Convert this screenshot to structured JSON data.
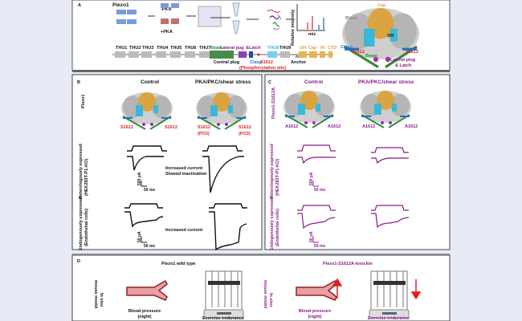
{
  "colors": {
    "background": "#e8eaf6",
    "phospho": "#e02020",
    "mutant": "#8b1a8b",
    "beam": "#2e8b3a",
    "clasp": "#1e6fd0",
    "thu8": "#3ab8d8",
    "cap": "#d9a441"
  },
  "panel_a": {
    "letter": "A",
    "title": "Piezo1",
    "minus_pka": "-PKA",
    "plus_pka": "+PKA",
    "ylabel": "Relative intensity",
    "xlabel": "m/z",
    "domains": [
      "THU1",
      "THU2",
      "THU3",
      "THU4",
      "THU5",
      "THU6",
      "THU7"
    ],
    "beam": "Beam",
    "lateral_plug": "Lateral pug",
    "latch": "&Latch",
    "thu8": "THU8",
    "thu9": "THU9",
    "oh": "OH",
    "cap": "Cap",
    "ih": "IH",
    "ctd": "CTD",
    "central_plug": "Central plug",
    "clasp": "Clasp",
    "site": "S1612",
    "site_note": "(Phosphorylation site)",
    "anchor": "Anchor",
    "structure": {
      "cap": "Cap",
      "blade": "Blade",
      "oh": "OH",
      "clasp": "Clasp",
      "beam": "Beam",
      "site_left": "S1612",
      "site_right": "S1612",
      "lateral": "Lateral plug",
      "latch": "& Latch"
    }
  },
  "panel_b": {
    "letter": "B",
    "col1": "Control",
    "col2": "PKA/PKC/shear stress",
    "row0": "Piezo1",
    "site": "S1612",
    "po3": "(PO3)",
    "row1_line1": "Heterologously expressed",
    "row1_line2": "(HEK293T-P1-KO)",
    "row1_note1": "Increased current",
    "row1_note2": "Slowed inactivation",
    "row1_scale_y": "500 pA",
    "row1_scale_x": "50 ms",
    "row2_line1": "Endogenously expressed",
    "row2_line2": "(Endothelial cells)",
    "row2_note": "Increased current",
    "row2_scale_y": "50 pA",
    "row2_scale_x": "50 ms"
  },
  "panel_c": {
    "letter": "C",
    "col1": "Control",
    "col2": "PKA/PKC/shear stress",
    "row0": "Piezo1-S1612A",
    "site": "A1612",
    "row1_line1": "Heterologously expressed",
    "row1_line2": "(HEK293T-P1-KO)",
    "row1_scale_y": "500 pA",
    "row1_scale_x": "50 ms",
    "row2_line1": "Endogenously expressed",
    "row2_line2": "(Endothelial cells)",
    "row2_scale_y": "50 pA",
    "row2_scale_x": "50 ms"
  },
  "panel_d": {
    "letter": "D",
    "wt": "Piezo1 wild type",
    "ki": "Piezo1-S1612A-knockin",
    "model1": "In vivo",
    "model2": "mouse model",
    "bp1": "Blood pressure",
    "bp2": "(night)",
    "ex": "Exercise endurance",
    "bp_change": "increase",
    "ex_change": "decrease"
  }
}
